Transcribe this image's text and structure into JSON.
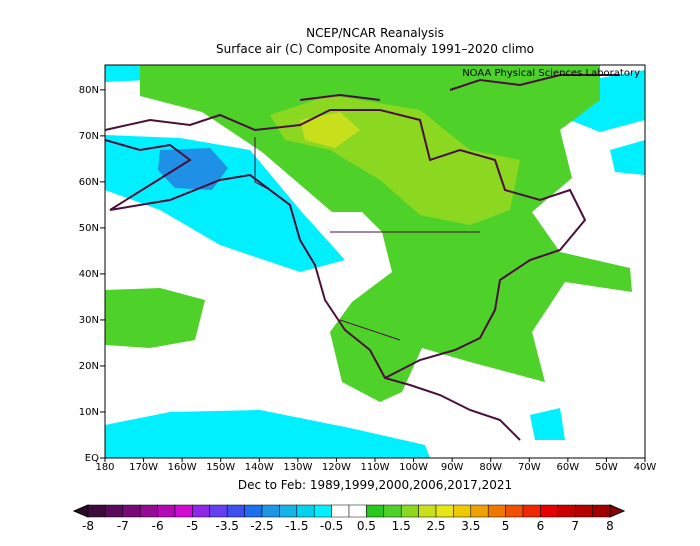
{
  "header": {
    "title": "NCEP/NCAR Reanalysis",
    "subtitle": "Surface air (C) Composite Anomaly 1991–2020 climo"
  },
  "attribution": "NOAA Physical Sciences Laboratory",
  "map": {
    "lat_labels": [
      "EQ",
      "10N",
      "20N",
      "30N",
      "40N",
      "50N",
      "60N",
      "70N",
      "80N"
    ],
    "lon_labels": [
      "180",
      "170W",
      "160W",
      "150W",
      "140W",
      "130W",
      "120W",
      "110W",
      "100W",
      "90W",
      "80W",
      "70W",
      "60W",
      "50W",
      "40W"
    ]
  },
  "caption": "Dec to Feb: 1989,1999,2000,2006,2017,2021",
  "colorbar": {
    "labels": [
      "-8",
      "-7",
      "-6",
      "-5",
      "-3.5",
      "-2.5",
      "-1.5",
      "-0.5",
      "0.5",
      "1.5",
      "2.5",
      "3.5",
      "5",
      "6",
      "7",
      "8"
    ]
  }
}
